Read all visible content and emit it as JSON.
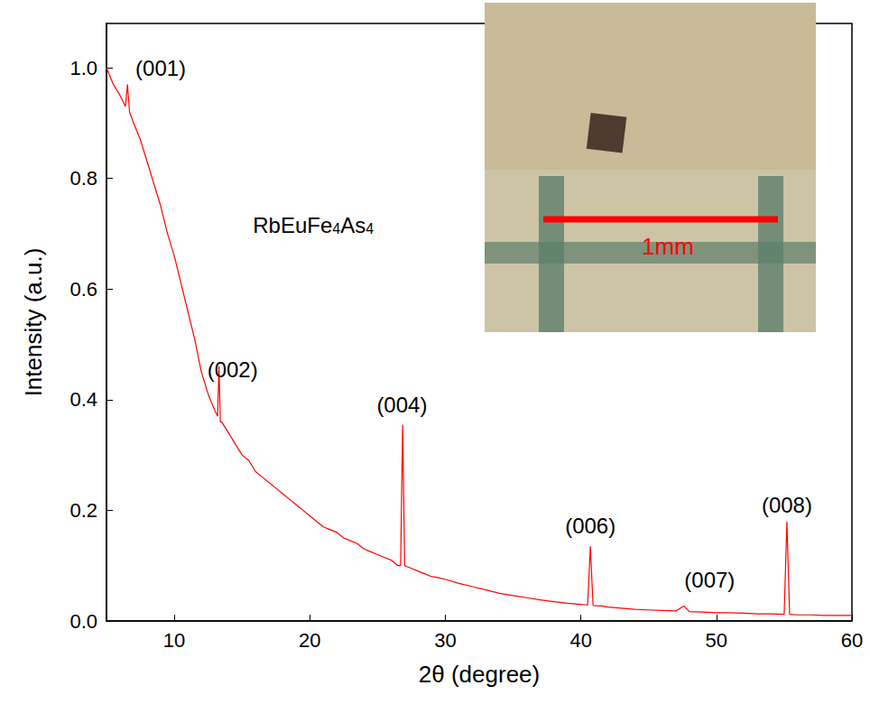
{
  "chart_data": {
    "type": "line",
    "x_label": "2θ (degree)",
    "y_label": "Intensity (a.u.)",
    "label": {
      "text": "RbEuFe4As4",
      "x": 15.8,
      "y": 0.72
    },
    "color": "#ff0000",
    "xlim": [
      5,
      60
    ],
    "xticks": [
      10,
      20,
      30,
      40,
      50,
      60
    ],
    "ylim": [
      0,
      1.08
    ],
    "yticks": [
      {
        "value": 0,
        "label": "0.0"
      },
      {
        "value": 0.2,
        "label": "0.2"
      },
      {
        "value": 0.4,
        "label": "0.4"
      },
      {
        "value": 0.6,
        "label": "0.6"
      },
      {
        "value": 0.8,
        "label": "0.8"
      },
      {
        "value": 1.0,
        "label": "1.0"
      }
    ],
    "grid": false,
    "x": [
      5.0,
      5.5,
      6.0,
      6.4,
      6.55,
      6.7,
      7.0,
      7.5,
      8.0,
      8.5,
      9.0,
      9.5,
      10.0,
      10.5,
      11.0,
      11.5,
      12.0,
      12.5,
      13.0,
      13.2,
      13.3,
      13.4,
      13.5,
      14.0,
      14.5,
      15.0,
      15.5,
      16.0,
      16.5,
      17.0,
      17.5,
      18.0,
      18.5,
      19.0,
      19.5,
      20.0,
      20.5,
      21.0,
      21.5,
      22.0,
      22.5,
      23.0,
      23.5,
      24.0,
      24.5,
      25.0,
      25.5,
      26.0,
      26.5,
      26.7,
      26.85,
      27.0,
      27.5,
      28.0,
      28.5,
      29.0,
      29.5,
      30.0,
      31.0,
      32.0,
      33.0,
      34.0,
      35.0,
      36.0,
      37.0,
      38.0,
      39.0,
      40.0,
      40.5,
      40.7,
      40.9,
      41.5,
      42.0,
      43.0,
      44.0,
      45.0,
      46.0,
      47.0,
      47.6,
      48.0,
      49.0,
      50.0,
      51.0,
      52.0,
      53.0,
      54.0,
      55.0,
      55.2,
      55.4,
      56.0,
      57.0,
      58.0,
      59.0,
      60.0
    ],
    "values": [
      1.0,
      0.97,
      0.95,
      0.93,
      0.97,
      0.92,
      0.9,
      0.87,
      0.83,
      0.79,
      0.75,
      0.7,
      0.66,
      0.61,
      0.56,
      0.51,
      0.45,
      0.41,
      0.38,
      0.37,
      0.46,
      0.36,
      0.36,
      0.34,
      0.32,
      0.3,
      0.29,
      0.27,
      0.26,
      0.25,
      0.24,
      0.23,
      0.22,
      0.21,
      0.2,
      0.19,
      0.18,
      0.17,
      0.165,
      0.16,
      0.15,
      0.145,
      0.14,
      0.13,
      0.125,
      0.12,
      0.115,
      0.11,
      0.1,
      0.1,
      0.355,
      0.1,
      0.095,
      0.09,
      0.085,
      0.08,
      0.078,
      0.075,
      0.068,
      0.062,
      0.056,
      0.05,
      0.046,
      0.042,
      0.038,
      0.035,
      0.032,
      0.03,
      0.029,
      0.135,
      0.028,
      0.027,
      0.025,
      0.023,
      0.021,
      0.02,
      0.019,
      0.018,
      0.027,
      0.017,
      0.016,
      0.015,
      0.015,
      0.014,
      0.013,
      0.013,
      0.012,
      0.18,
      0.012,
      0.011,
      0.011,
      0.01,
      0.01,
      0.01
    ],
    "annotations": [
      {
        "text": "(001)",
        "x": 9.0,
        "y": 1.0
      },
      {
        "text": "(002)",
        "x": 14.3,
        "y": 0.455
      },
      {
        "text": "(004)",
        "x": 26.8,
        "y": 0.39
      },
      {
        "text": "(006)",
        "x": 40.7,
        "y": 0.172
      },
      {
        "text": "(007)",
        "x": 49.5,
        "y": 0.075
      },
      {
        "text": "(008)",
        "x": 55.2,
        "y": 0.21
      }
    ],
    "inset": {
      "scale_bar_label": "1mm"
    }
  }
}
